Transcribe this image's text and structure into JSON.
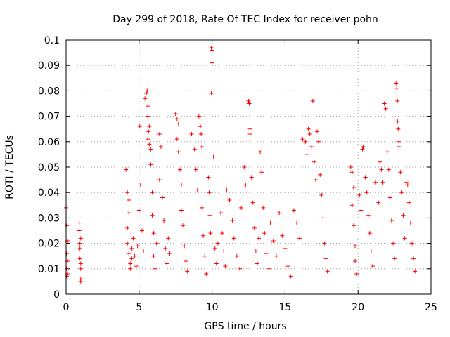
{
  "chart_data": {
    "type": "scatter",
    "title": "Day 299 of 2018, Rate Of TEC Index for receiver pohn",
    "xlabel": "GPS time / hours",
    "ylabel": "ROTI / TECUs",
    "xlim": [
      0,
      25
    ],
    "ylim": [
      0,
      0.1
    ],
    "x_ticks": [
      "0",
      "5",
      "10",
      "15",
      "20",
      "25"
    ],
    "y_ticks": [
      "0",
      "0.01",
      "0.02",
      "0.03",
      "0.04",
      "0.05",
      "0.06",
      "0.07",
      "0.08",
      "0.09",
      "0.1"
    ],
    "grid": true,
    "marker": "+",
    "color": "#ff0000",
    "series": [
      {
        "values_note": "dense cloud of ROTI samples; representative points below",
        "points": [
          [
            0.0,
            0.034
          ],
          [
            0.05,
            0.027
          ],
          [
            0.05,
            0.016
          ],
          [
            0.05,
            0.01
          ],
          [
            0.05,
            0.007
          ],
          [
            0.1,
            0.021
          ],
          [
            0.1,
            0.013
          ],
          [
            0.1,
            0.008
          ],
          [
            0.9,
            0.028
          ],
          [
            0.9,
            0.025
          ],
          [
            0.95,
            0.02
          ],
          [
            0.95,
            0.018
          ],
          [
            0.95,
            0.014
          ],
          [
            1.0,
            0.012
          ],
          [
            1.0,
            0.01
          ],
          [
            1.0,
            0.006
          ],
          [
            1.0,
            0.005
          ],
          [
            1.0,
            0.022
          ],
          [
            4.1,
            0.049
          ],
          [
            4.2,
            0.04
          ],
          [
            4.3,
            0.037
          ],
          [
            4.3,
            0.032
          ],
          [
            4.2,
            0.026
          ],
          [
            4.2,
            0.02
          ],
          [
            4.3,
            0.016
          ],
          [
            4.4,
            0.012
          ],
          [
            4.4,
            0.01
          ],
          [
            4.5,
            0.014
          ],
          [
            4.5,
            0.018
          ],
          [
            4.6,
            0.022
          ],
          [
            4.7,
            0.015
          ],
          [
            4.8,
            0.011
          ],
          [
            4.9,
            0.019
          ],
          [
            5.0,
            0.033
          ],
          [
            5.05,
            0.066
          ],
          [
            5.1,
            0.043
          ],
          [
            5.2,
            0.025
          ],
          [
            5.3,
            0.017
          ],
          [
            5.4,
            0.077
          ],
          [
            5.5,
            0.079
          ],
          [
            5.55,
            0.08
          ],
          [
            5.6,
            0.074
          ],
          [
            5.6,
            0.07
          ],
          [
            5.7,
            0.066
          ],
          [
            5.65,
            0.064
          ],
          [
            5.6,
            0.061
          ],
          [
            5.7,
            0.059
          ],
          [
            5.8,
            0.057
          ],
          [
            5.8,
            0.051
          ],
          [
            5.9,
            0.04
          ],
          [
            5.9,
            0.031
          ],
          [
            6.0,
            0.024
          ],
          [
            6.0,
            0.015
          ],
          [
            6.1,
            0.01
          ],
          [
            6.2,
            0.02
          ],
          [
            6.4,
            0.063
          ],
          [
            6.5,
            0.058
          ],
          [
            6.4,
            0.045
          ],
          [
            6.6,
            0.038
          ],
          [
            6.7,
            0.029
          ],
          [
            6.8,
            0.018
          ],
          [
            6.9,
            0.012
          ],
          [
            7.0,
            0.022
          ],
          [
            7.1,
            0.016
          ],
          [
            7.5,
            0.071
          ],
          [
            7.6,
            0.069
          ],
          [
            7.7,
            0.067
          ],
          [
            7.6,
            0.061
          ],
          [
            7.7,
            0.056
          ],
          [
            7.8,
            0.049
          ],
          [
            7.9,
            0.043
          ],
          [
            7.9,
            0.033
          ],
          [
            8.0,
            0.027
          ],
          [
            8.1,
            0.019
          ],
          [
            8.2,
            0.013
          ],
          [
            8.3,
            0.009
          ],
          [
            8.6,
            0.063
          ],
          [
            8.8,
            0.057
          ],
          [
            8.9,
            0.049
          ],
          [
            9.0,
            0.041
          ],
          [
            9.1,
            0.07
          ],
          [
            9.2,
            0.066
          ],
          [
            9.25,
            0.063
          ],
          [
            9.3,
            0.058
          ],
          [
            9.3,
            0.034
          ],
          [
            9.4,
            0.023
          ],
          [
            9.5,
            0.015
          ],
          [
            9.6,
            0.008
          ],
          [
            9.75,
            0.046
          ],
          [
            9.8,
            0.04
          ],
          [
            9.85,
            0.031
          ],
          [
            9.9,
            0.024
          ],
          [
            9.95,
            0.097
          ],
          [
            10.0,
            0.096
          ],
          [
            10.0,
            0.091
          ],
          [
            9.95,
            0.079
          ],
          [
            10.1,
            0.054
          ],
          [
            10.2,
            0.018
          ],
          [
            10.3,
            0.012
          ],
          [
            10.4,
            0.02
          ],
          [
            10.6,
            0.032
          ],
          [
            10.7,
            0.024
          ],
          [
            10.8,
            0.017
          ],
          [
            10.9,
            0.011
          ],
          [
            11.0,
            0.041
          ],
          [
            11.2,
            0.037
          ],
          [
            11.4,
            0.029
          ],
          [
            11.5,
            0.022
          ],
          [
            11.7,
            0.015
          ],
          [
            11.9,
            0.01
          ],
          [
            12.0,
            0.034
          ],
          [
            12.2,
            0.05
          ],
          [
            12.3,
            0.043
          ],
          [
            12.5,
            0.076
          ],
          [
            12.55,
            0.075
          ],
          [
            12.6,
            0.065
          ],
          [
            12.6,
            0.063
          ],
          [
            12.7,
            0.046
          ],
          [
            12.8,
            0.036
          ],
          [
            12.9,
            0.026
          ],
          [
            13.0,
            0.017
          ],
          [
            13.1,
            0.012
          ],
          [
            13.2,
            0.022
          ],
          [
            13.3,
            0.056
          ],
          [
            13.4,
            0.048
          ],
          [
            13.5,
            0.034
          ],
          [
            13.6,
            0.024
          ],
          [
            13.7,
            0.016
          ],
          [
            13.9,
            0.01
          ],
          [
            14.0,
            0.028
          ],
          [
            14.2,
            0.021
          ],
          [
            14.4,
            0.015
          ],
          [
            14.6,
            0.032
          ],
          [
            14.8,
            0.023
          ],
          [
            15.0,
            0.018
          ],
          [
            15.2,
            0.011
          ],
          [
            15.4,
            0.007
          ],
          [
            15.6,
            0.033
          ],
          [
            15.8,
            0.028
          ],
          [
            16.0,
            0.022
          ],
          [
            16.2,
            0.061
          ],
          [
            16.4,
            0.06
          ],
          [
            16.5,
            0.055
          ],
          [
            16.6,
            0.065
          ],
          [
            16.7,
            0.063
          ],
          [
            16.8,
            0.058
          ],
          [
            16.9,
            0.076
          ],
          [
            17.0,
            0.052
          ],
          [
            17.1,
            0.045
          ],
          [
            17.2,
            0.064
          ],
          [
            17.3,
            0.06
          ],
          [
            17.4,
            0.047
          ],
          [
            17.5,
            0.039
          ],
          [
            17.6,
            0.03
          ],
          [
            17.7,
            0.02
          ],
          [
            17.8,
            0.014
          ],
          [
            17.9,
            0.009
          ],
          [
            19.5,
            0.05
          ],
          [
            19.6,
            0.048
          ],
          [
            19.7,
            0.042
          ],
          [
            19.6,
            0.035
          ],
          [
            19.7,
            0.027
          ],
          [
            19.8,
            0.019
          ],
          [
            19.8,
            0.013
          ],
          [
            19.9,
            0.008
          ],
          [
            20.1,
            0.039
          ],
          [
            20.2,
            0.033
          ],
          [
            20.3,
            0.057
          ],
          [
            20.35,
            0.058
          ],
          [
            20.4,
            0.054
          ],
          [
            20.5,
            0.046
          ],
          [
            20.6,
            0.04
          ],
          [
            20.7,
            0.031
          ],
          [
            20.8,
            0.024
          ],
          [
            20.9,
            0.017
          ],
          [
            21.0,
            0.011
          ],
          [
            21.2,
            0.044
          ],
          [
            21.4,
            0.036
          ],
          [
            21.5,
            0.052
          ],
          [
            21.6,
            0.049
          ],
          [
            21.7,
            0.044
          ],
          [
            21.8,
            0.075
          ],
          [
            21.9,
            0.073
          ],
          [
            22.0,
            0.056
          ],
          [
            22.1,
            0.049
          ],
          [
            22.2,
            0.038
          ],
          [
            22.3,
            0.029
          ],
          [
            22.4,
            0.02
          ],
          [
            22.5,
            0.014
          ],
          [
            22.6,
            0.083
          ],
          [
            22.65,
            0.081
          ],
          [
            22.7,
            0.076
          ],
          [
            22.7,
            0.068
          ],
          [
            22.75,
            0.065
          ],
          [
            22.8,
            0.06
          ],
          [
            22.8,
            0.058
          ],
          [
            22.9,
            0.048
          ],
          [
            23.0,
            0.04
          ],
          [
            23.1,
            0.031
          ],
          [
            23.2,
            0.022
          ],
          [
            23.3,
            0.044
          ],
          [
            23.4,
            0.043
          ],
          [
            23.5,
            0.036
          ],
          [
            23.6,
            0.028
          ],
          [
            23.7,
            0.02
          ],
          [
            23.8,
            0.014
          ],
          [
            23.9,
            0.009
          ]
        ]
      }
    ]
  }
}
